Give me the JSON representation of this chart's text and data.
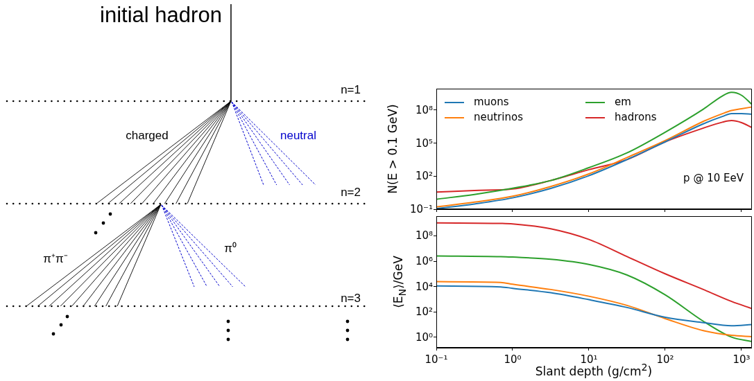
{
  "chart_data": [
    {
      "type": "other",
      "annotations": [
        "initial hadron",
        "n=1",
        "n=2",
        "n=3",
        "charged",
        "neutral",
        "π⁺π⁻",
        "π⁰"
      ]
    },
    {
      "type": "line",
      "ylabel": "N(E > 0.1 GeV)",
      "annotations": [
        "p @ 10 EeV"
      ],
      "log": "xy",
      "legend": "top left",
      "marker": "none",
      "line_style": "solid",
      "grid": false,
      "tick_labels": "y",
      "x": [
        0.1,
        0.316,
        1,
        3.16,
        10,
        31.6,
        100,
        316,
        562,
        741,
        1000,
        1370
      ],
      "xlim": [
        0.1,
        1370
      ],
      "xticks": [
        {
          "value": 0.1,
          "label": null
        },
        {
          "value": 1,
          "label": null
        },
        {
          "value": 10,
          "label": null
        },
        {
          "value": 100,
          "label": null
        },
        {
          "value": 1000,
          "label": null
        }
      ],
      "ylim": [
        0.1,
        8700000000
      ],
      "yticks": [
        {
          "value": 0.1,
          "label": "10⁻¹"
        },
        {
          "value": 100,
          "label": "10²"
        },
        {
          "value": 100000,
          "label": "10⁵"
        },
        {
          "value": 100000000,
          "label": "10⁸"
        }
      ],
      "series": [
        {
          "name": "muons",
          "color": "#1f77b4",
          "values": [
            0.11,
            0.3,
            1.07,
            7.6,
            110,
            3200,
            130000,
            5600000,
            26000000,
            47000000,
            47000000,
            43000000
          ]
        },
        {
          "name": "neutrinos",
          "color": "#ff7f0e",
          "values": [
            0.16,
            0.44,
            1.5,
            11.5,
            160,
            4900,
            170000,
            9300000,
            47000000,
            91000000,
            130000000,
            190000000
          ]
        },
        {
          "name": "em",
          "color": "#2ca02c",
          "values": [
            0.8,
            2.2,
            7.9,
            40,
            590,
            13000,
            980000,
            120000000,
            1900000000,
            4000000000,
            2200000000,
            320000000
          ]
        },
        {
          "name": "hadrons",
          "color": "#d62728",
          "values": [
            3.6,
            5,
            6.9,
            40,
            390,
            3200,
            130000,
            2300000,
            7900000,
            11000000,
            7200000,
            2600000
          ]
        }
      ]
    },
    {
      "type": "line",
      "xlabel": "Slant depth (g/cm$^{2}$)",
      "ylabel": "⟨E$_{N}$⟩/GeV",
      "log": "xy",
      "marker": "none",
      "line_style": "solid",
      "grid": false,
      "x": [
        0.1,
        0.7,
        1,
        3.16,
        10,
        31.6,
        100,
        316,
        741,
        1370
      ],
      "xlim": [
        0.1,
        1370
      ],
      "xticks": [
        {
          "value": 0.1,
          "label": "10⁻¹"
        },
        {
          "value": 1,
          "label": "10⁰"
        },
        {
          "value": 10,
          "label": "10¹"
        },
        {
          "value": 100,
          "label": "10²"
        },
        {
          "value": 1000,
          "label": "10³"
        }
      ],
      "ylim": [
        0.145,
        3600000000
      ],
      "yticks": [
        {
          "value": 1,
          "label": "10⁰"
        },
        {
          "value": 100,
          "label": "10²"
        },
        {
          "value": 10000,
          "label": "10⁴"
        },
        {
          "value": 1000000,
          "label": "10⁶"
        },
        {
          "value": 100000000,
          "label": "10⁸"
        }
      ],
      "series": [
        {
          "color": "#1f77b4",
          "values": [
            11000,
            9300,
            7200,
            3200,
            910,
            220,
            37,
            14,
            7.9,
            10
          ]
        },
        {
          "color": "#ff7f0e",
          "values": [
            24000,
            21000,
            15000,
            5800,
            1700,
            320,
            29,
            3.3,
            1.4,
            1.1
          ]
        },
        {
          "color": "#2ca02c",
          "values": [
            2600000,
            2300000,
            2100000,
            1400000,
            550000,
            81000,
            2200,
            18,
            1,
            0.45
          ]
        },
        {
          "color": "#d62728",
          "values": [
            1050000000,
            950000000,
            870000000,
            360000000,
            52000000,
            2300000,
            100000,
            5800,
            660,
            180
          ]
        }
      ]
    }
  ]
}
